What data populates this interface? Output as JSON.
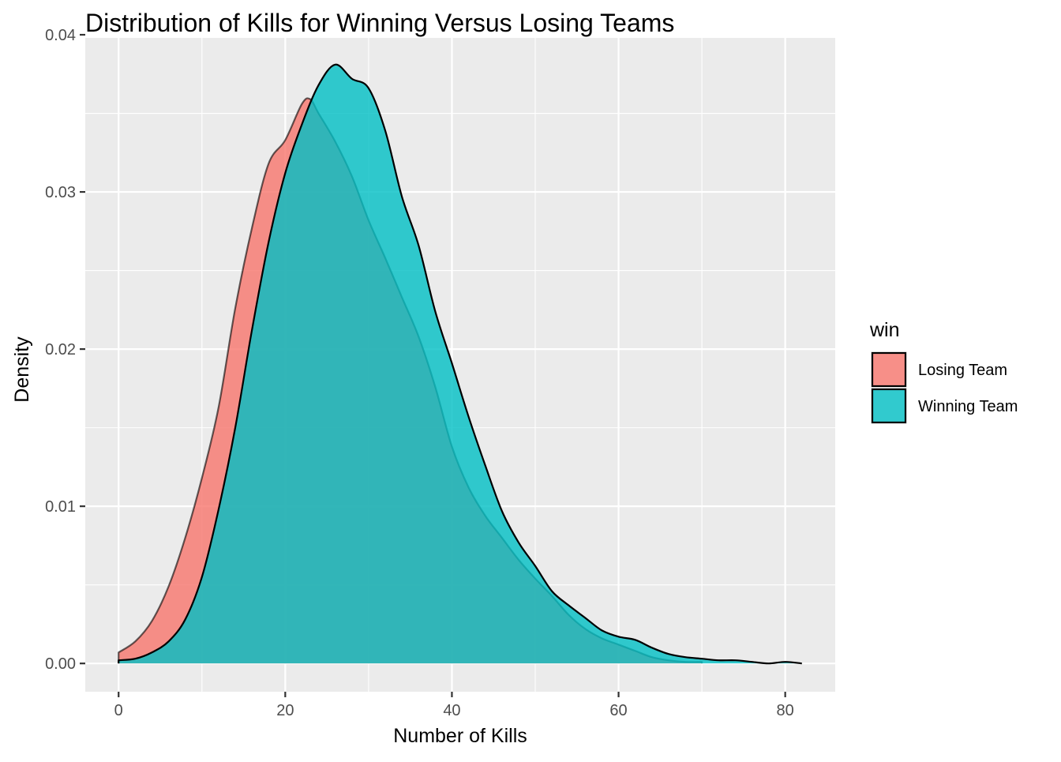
{
  "chart_data": {
    "type": "area",
    "subtype": "density",
    "title": "Distribution of Kills for Winning Versus Losing Teams",
    "xlabel": "Number of Kills",
    "ylabel": "Density",
    "xlim": [
      -4,
      86
    ],
    "ylim": [
      -0.0018,
      0.0398
    ],
    "x_ticks": [
      0,
      20,
      40,
      60,
      80
    ],
    "x_tick_labels": [
      "0",
      "20",
      "40",
      "60",
      "80"
    ],
    "y_ticks": [
      0.0,
      0.01,
      0.02,
      0.03,
      0.04
    ],
    "y_tick_labels": [
      "0.00",
      "0.01",
      "0.02",
      "0.03",
      "0.04"
    ],
    "grid": true,
    "legend": {
      "title": "win",
      "position": "right"
    },
    "series": [
      {
        "name": "Losing Team",
        "color": "#F8766D",
        "points": [
          [
            0,
            0.0007
          ],
          [
            2,
            0.0014
          ],
          [
            4,
            0.0027
          ],
          [
            6,
            0.0049
          ],
          [
            8,
            0.008
          ],
          [
            10,
            0.0118
          ],
          [
            12,
            0.0163
          ],
          [
            14,
            0.0226
          ],
          [
            16,
            0.0277
          ],
          [
            18,
            0.0318
          ],
          [
            20,
            0.0333
          ],
          [
            22,
            0.0356
          ],
          [
            23,
            0.0359
          ],
          [
            24,
            0.035
          ],
          [
            26,
            0.0332
          ],
          [
            28,
            0.031
          ],
          [
            30,
            0.0282
          ],
          [
            32,
            0.0258
          ],
          [
            34,
            0.0233
          ],
          [
            36,
            0.0208
          ],
          [
            38,
            0.0176
          ],
          [
            40,
            0.0138
          ],
          [
            42,
            0.0112
          ],
          [
            44,
            0.0094
          ],
          [
            46,
            0.008
          ],
          [
            48,
            0.0066
          ],
          [
            50,
            0.0054
          ],
          [
            52,
            0.0043
          ],
          [
            54,
            0.0031
          ],
          [
            56,
            0.0022
          ],
          [
            58,
            0.0016
          ],
          [
            60,
            0.0012
          ],
          [
            62,
            0.0008
          ],
          [
            64,
            0.0004
          ],
          [
            66,
            0.0002
          ],
          [
            68,
            0.0001
          ],
          [
            70,
            0.0001
          ]
        ]
      },
      {
        "name": "Winning Team",
        "color": "#00BFC4",
        "points": [
          [
            0,
            0.0002
          ],
          [
            2,
            0.0003
          ],
          [
            4,
            0.0007
          ],
          [
            6,
            0.0014
          ],
          [
            8,
            0.0028
          ],
          [
            10,
            0.0055
          ],
          [
            12,
            0.0098
          ],
          [
            14,
            0.015
          ],
          [
            16,
            0.0212
          ],
          [
            18,
            0.0268
          ],
          [
            20,
            0.0312
          ],
          [
            22,
            0.0343
          ],
          [
            24,
            0.0368
          ],
          [
            26,
            0.0381
          ],
          [
            28,
            0.0372
          ],
          [
            30,
            0.0366
          ],
          [
            32,
            0.0339
          ],
          [
            34,
            0.0297
          ],
          [
            36,
            0.0266
          ],
          [
            38,
            0.0224
          ],
          [
            40,
            0.0191
          ],
          [
            42,
            0.0157
          ],
          [
            44,
            0.0126
          ],
          [
            46,
            0.0097
          ],
          [
            48,
            0.0077
          ],
          [
            50,
            0.0062
          ],
          [
            52,
            0.0046
          ],
          [
            54,
            0.0037
          ],
          [
            56,
            0.0029
          ],
          [
            58,
            0.0021
          ],
          [
            60,
            0.0017
          ],
          [
            62,
            0.0015
          ],
          [
            64,
            0.001
          ],
          [
            66,
            0.0006
          ],
          [
            68,
            0.0004
          ],
          [
            70,
            0.0003
          ],
          [
            72,
            0.0002
          ],
          [
            74,
            0.0002
          ],
          [
            76,
            0.0001
          ],
          [
            78,
            0.0
          ],
          [
            80,
            0.0001
          ],
          [
            82,
            0.0
          ]
        ]
      }
    ]
  }
}
